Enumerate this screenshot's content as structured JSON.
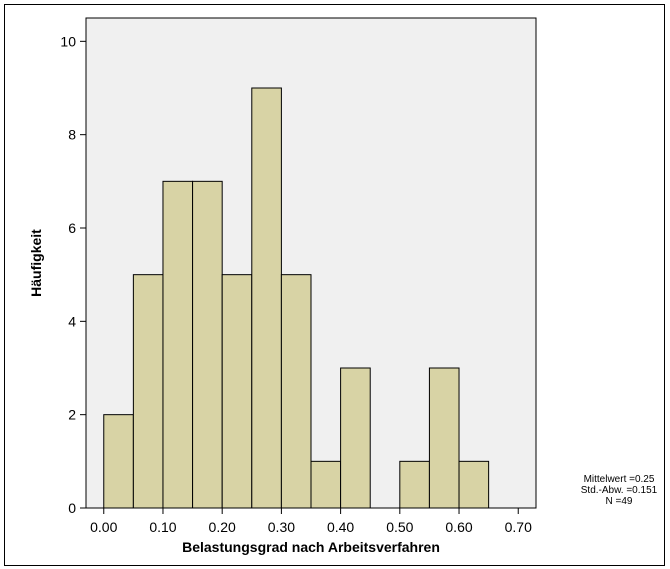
{
  "chart_data": {
    "type": "bar",
    "subtype": "histogram",
    "xlabel": "Belastungsgrad nach Arbeitsverfahren",
    "ylabel": "Häufigkeit",
    "xlim": [
      -0.03,
      0.73
    ],
    "ylim": [
      0,
      10.5
    ],
    "xticks": [
      0.0,
      0.1,
      0.2,
      0.3,
      0.4,
      0.5,
      0.6,
      0.7
    ],
    "xtick_labels": [
      "0.00",
      "0.10",
      "0.20",
      "0.30",
      "0.40",
      "0.50",
      "0.60",
      "0.70"
    ],
    "yticks": [
      0,
      2,
      4,
      6,
      8,
      10
    ],
    "ytick_labels": [
      "0",
      "2",
      "4",
      "6",
      "8",
      "10"
    ],
    "bin_width": 0.05,
    "bins": [
      {
        "start": 0.0,
        "end": 0.05,
        "count": 2
      },
      {
        "start": 0.05,
        "end": 0.1,
        "count": 5
      },
      {
        "start": 0.1,
        "end": 0.15,
        "count": 7
      },
      {
        "start": 0.15,
        "end": 0.2,
        "count": 7
      },
      {
        "start": 0.2,
        "end": 0.25,
        "count": 5
      },
      {
        "start": 0.25,
        "end": 0.3,
        "count": 9
      },
      {
        "start": 0.3,
        "end": 0.35,
        "count": 5
      },
      {
        "start": 0.35,
        "end": 0.4,
        "count": 1
      },
      {
        "start": 0.4,
        "end": 0.45,
        "count": 3
      },
      {
        "start": 0.45,
        "end": 0.5,
        "count": 0
      },
      {
        "start": 0.5,
        "end": 0.55,
        "count": 1
      },
      {
        "start": 0.55,
        "end": 0.6,
        "count": 3
      },
      {
        "start": 0.6,
        "end": 0.65,
        "count": 1
      }
    ],
    "stats": {
      "mean": "Mittelwert =0.25",
      "sd": "Std.-Abw. =0.151",
      "n": "N =49"
    },
    "colors": {
      "bar_fill": "#d8d3a5",
      "bar_stroke": "#000000",
      "plot_background": "#f0f0f0"
    },
    "grid": false
  }
}
